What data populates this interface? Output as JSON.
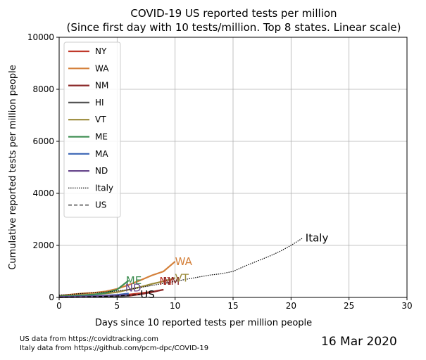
{
  "chart_data": {
    "type": "line",
    "title": "COVID-19 US reported tests per million",
    "subtitle": "(Since first day with 10 tests/million. Top 8 states. Linear scale)",
    "xlabel": "Days since 10 reported tests per million people",
    "ylabel": "Cumulative reported tests per million people",
    "xlim": [
      0,
      30
    ],
    "ylim": [
      0,
      10000
    ],
    "xticks": [
      0,
      5,
      10,
      15,
      20,
      25,
      30
    ],
    "yticks": [
      0,
      2000,
      4000,
      6000,
      8000,
      10000
    ],
    "grid": true,
    "legend_position": "top-left",
    "series": [
      {
        "name": "NY",
        "color": "#c0392b",
        "style": "solid",
        "end_label": "NY",
        "x": [
          0,
          1,
          2,
          3,
          4,
          5,
          6,
          7,
          8,
          9
        ],
        "y": [
          12,
          20,
          28,
          40,
          55,
          75,
          110,
          160,
          220,
          300
        ]
      },
      {
        "name": "WA",
        "color": "#d4803a",
        "style": "solid",
        "end_label": "WA",
        "x": [
          0,
          1,
          2,
          3,
          4,
          5,
          6,
          7,
          8,
          9,
          10
        ],
        "y": [
          60,
          110,
          150,
          180,
          230,
          330,
          480,
          660,
          850,
          1000,
          1380
        ]
      },
      {
        "name": "NM",
        "color": "#8b2a2a",
        "style": "solid",
        "end_label": "NM",
        "x": [
          0,
          1,
          2,
          3,
          4,
          5,
          6,
          7,
          8,
          9
        ],
        "y": [
          10,
          15,
          20,
          25,
          30,
          40,
          60,
          120,
          200,
          300
        ]
      },
      {
        "name": "HI",
        "color": "#555555",
        "style": "solid",
        "end_label": "",
        "x": [
          0,
          1,
          2,
          3,
          4,
          5,
          6
        ],
        "y": [
          10,
          12,
          15,
          20,
          25,
          40,
          60
        ]
      },
      {
        "name": "VT",
        "color": "#9a8a3a",
        "style": "solid",
        "end_label": "VT",
        "x": [
          0,
          1,
          2,
          3,
          4,
          5,
          6,
          7,
          8,
          9,
          10
        ],
        "y": [
          30,
          60,
          90,
          120,
          150,
          200,
          300,
          400,
          520,
          620,
          750
        ]
      },
      {
        "name": "ME",
        "color": "#3e8e52",
        "style": "solid",
        "end_label": "ME",
        "x": [
          0,
          1,
          2,
          3,
          4,
          5,
          6
        ],
        "y": [
          40,
          60,
          80,
          110,
          170,
          300,
          650
        ]
      },
      {
        "name": "MA",
        "color": "#3a64b5",
        "style": "solid",
        "end_label": "",
        "x": [
          0,
          1,
          2,
          3,
          4,
          5,
          6
        ],
        "y": [
          20,
          30,
          40,
          55,
          75,
          100,
          150
        ]
      },
      {
        "name": "ND",
        "color": "#6a4a8e",
        "style": "solid",
        "end_label": "ND",
        "x": [
          0,
          1,
          2,
          3,
          4,
          5,
          6
        ],
        "y": [
          15,
          20,
          30,
          40,
          55,
          75,
          100
        ]
      },
      {
        "name": "Italy",
        "color": "#000000",
        "style": "dotted",
        "end_label": "Italy",
        "x": [
          0,
          1,
          2,
          3,
          4,
          5,
          6,
          7,
          8,
          9,
          10,
          11,
          12,
          13,
          14,
          15,
          16,
          17,
          18,
          19,
          20,
          21
        ],
        "y": [
          90,
          120,
          150,
          180,
          210,
          250,
          300,
          380,
          460,
          540,
          620,
          700,
          780,
          860,
          910,
          1000,
          1200,
          1380,
          1560,
          1760,
          2000,
          2280
        ]
      },
      {
        "name": "US",
        "color": "#000000",
        "style": "dashed",
        "end_label": "US",
        "x": [
          0,
          1,
          2,
          3,
          4,
          5,
          6,
          7
        ],
        "y": [
          12,
          15,
          20,
          30,
          40,
          55,
          80,
          110
        ]
      }
    ]
  },
  "footer": {
    "source_us": "US data from https://covidtracking.com",
    "source_italy": "Italy data from https://github.com/pcm-dpc/COVID-19",
    "date": "16 Mar 2020"
  }
}
